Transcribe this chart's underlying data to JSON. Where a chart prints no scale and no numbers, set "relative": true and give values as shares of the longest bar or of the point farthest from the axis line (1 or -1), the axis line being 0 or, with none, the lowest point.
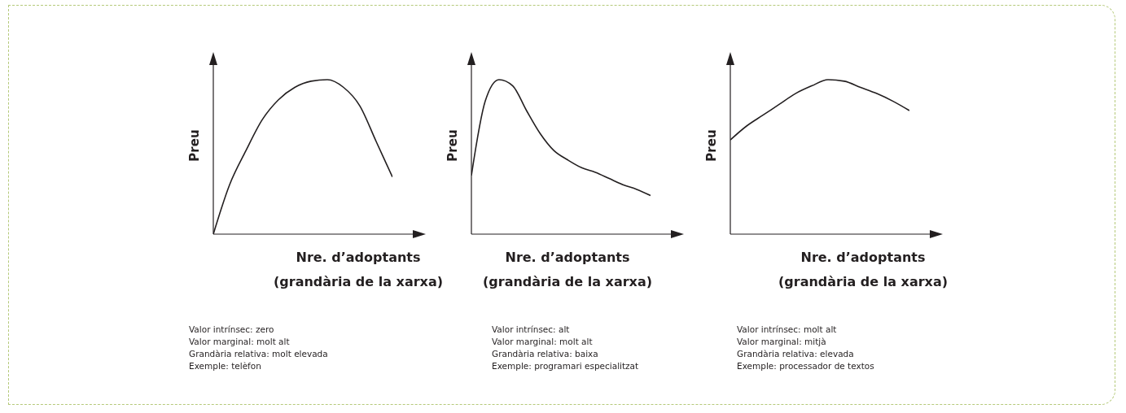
{
  "chart_data": [
    {
      "type": "line",
      "relative": true,
      "ylabel": "Preu",
      "xlabel": "Nre. d’adoptants (grandària de la xarxa)",
      "categories": [
        null,
        null,
        null,
        null,
        null,
        null,
        null,
        null,
        null,
        null,
        null,
        null
      ],
      "series": [
        {
          "color": "#231f20",
          "values": [
            0,
            0.32,
            0.54,
            0.74,
            0.87,
            0.95,
            0.99,
            1,
            0.95,
            0.83,
            0.6,
            0.37
          ]
        }
      ],
      "annotations": [
        "Valor intrínsec: zero",
        "Valor marginal: molt alt",
        "Grandària relativa: molt elevada",
        "Exemple: telèfon"
      ]
    },
    {
      "type": "line",
      "relative": true,
      "ylabel": "Preu",
      "xlabel": "Nre. d’adoptants (grandària de la xarxa)",
      "categories": [
        null,
        null,
        null,
        null,
        null,
        null,
        null,
        null,
        null,
        null,
        null,
        null,
        null,
        null
      ],
      "series": [
        {
          "color": "#231f20",
          "values": [
            0.38,
            0.86,
            1,
            0.96,
            0.8,
            0.65,
            0.54,
            0.48,
            0.43,
            0.4,
            0.36,
            0.32,
            0.29,
            0.25
          ]
        }
      ],
      "annotations": [
        "Valor intrínsec: alt",
        "Valor marginal: molt alt",
        "Grandària relativa: baixa",
        "Exemple: programari especialitzat"
      ]
    },
    {
      "type": "line",
      "relative": true,
      "ylabel": "Preu",
      "xlabel": "Nre. d’adoptants (grandària de la xarxa)",
      "categories": [
        null,
        null,
        null,
        null,
        null,
        null,
        null,
        null,
        null,
        null,
        null,
        null
      ],
      "series": [
        {
          "color": "#231f20",
          "values": [
            0.61,
            0.7,
            0.77,
            0.84,
            0.91,
            0.96,
            1,
            0.99,
            0.95,
            0.91,
            0.86,
            0.8
          ]
        }
      ],
      "annotations": [
        "Valor intrínsec: molt alt",
        "Valor marginal: mitjà",
        "Grandària relativa: elevada",
        "Exemple: processador de textos"
      ]
    }
  ]
}
